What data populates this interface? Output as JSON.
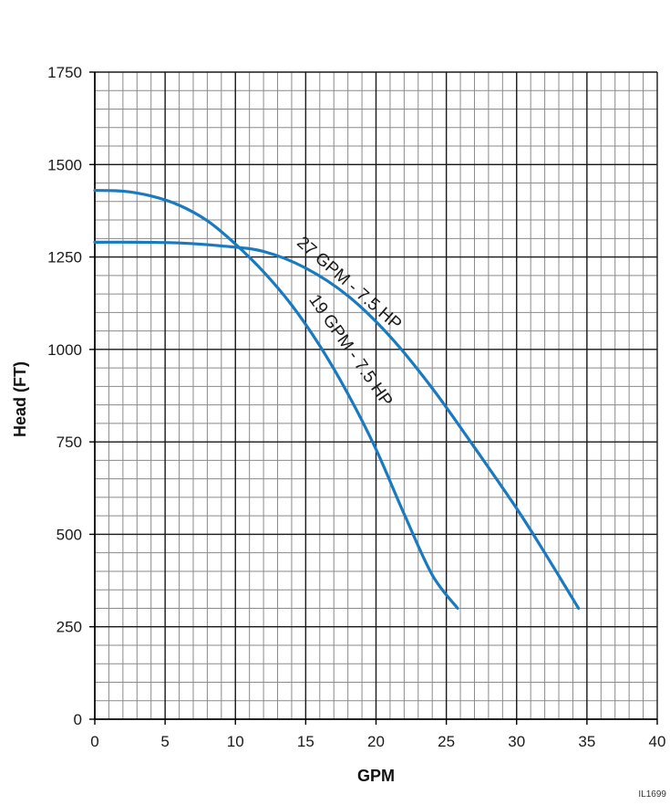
{
  "chart_data": {
    "type": "line",
    "title": "",
    "xlabel": "GPM",
    "ylabel": "Head (FT)",
    "xlim": [
      0,
      40
    ],
    "ylim": [
      0,
      1750
    ],
    "x_ticks": [
      0,
      5,
      10,
      15,
      20,
      25,
      30,
      35,
      40
    ],
    "y_ticks": [
      0,
      250,
      500,
      750,
      1000,
      1250,
      1500,
      1750
    ],
    "x_minor_step": 1,
    "y_minor_step": 50,
    "grid": true,
    "line_color": "#1a7abf",
    "series": [
      {
        "name": "19 GPM - 7.5 HP",
        "x": [
          0,
          2,
          4,
          6,
          8,
          10,
          12,
          14,
          16,
          18,
          20,
          22,
          24,
          25.8
        ],
        "y": [
          1430,
          1428,
          1415,
          1390,
          1348,
          1285,
          1210,
          1120,
          1010,
          880,
          730,
          555,
          390,
          300
        ]
      },
      {
        "name": "27 GPM - 7.5 HP",
        "x": [
          0,
          3,
          6,
          9,
          12,
          15,
          18,
          21,
          24,
          27,
          30,
          32,
          34.4
        ],
        "y": [
          1290,
          1290,
          1288,
          1280,
          1265,
          1220,
          1145,
          1035,
          895,
          735,
          570,
          450,
          300
        ]
      }
    ],
    "annotations": [
      "19 GPM - 7.5 HP",
      "27 GPM - 7.5 HP"
    ]
  },
  "footer_code": "IL1699"
}
